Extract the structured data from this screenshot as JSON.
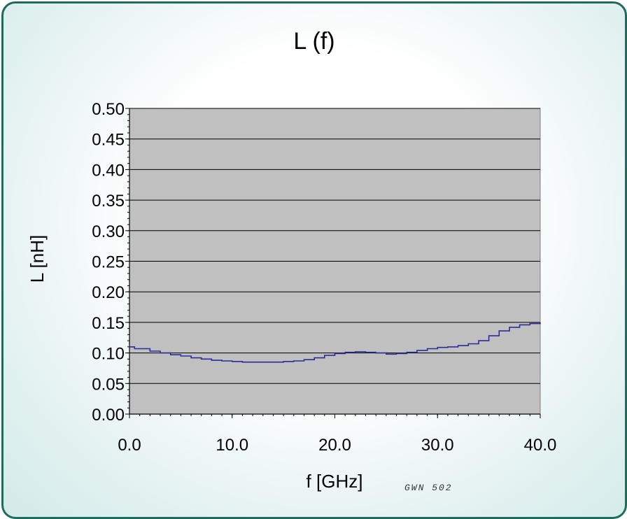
{
  "chart_data": {
    "type": "line",
    "title": "L (f)",
    "xlabel": "f [GHz]",
    "ylabel": "L [nH]",
    "xlim": [
      0,
      40
    ],
    "ylim": [
      0,
      0.5
    ],
    "x_ticks": [
      "0.0",
      "10.0",
      "20.0",
      "30.0",
      "40.0"
    ],
    "y_ticks": [
      "0.00",
      "0.05",
      "0.10",
      "0.15",
      "0.20",
      "0.25",
      "0.30",
      "0.35",
      "0.40",
      "0.45",
      "0.50"
    ],
    "grid": "horizontal",
    "legend": "none",
    "series": [
      {
        "color": "#2b2b9a",
        "x": [
          0,
          0.5,
          1,
          2,
          3,
          4,
          5,
          6,
          7,
          8,
          9,
          10,
          11,
          12,
          13,
          14,
          15,
          16,
          17,
          18,
          19,
          20,
          21,
          22,
          23,
          24,
          25,
          26,
          27,
          28,
          29,
          30,
          31,
          32,
          33,
          34,
          35,
          36,
          37,
          38,
          39,
          40
        ],
        "values": [
          0.11,
          0.107,
          0.107,
          0.103,
          0.1,
          0.097,
          0.095,
          0.092,
          0.09,
          0.088,
          0.087,
          0.086,
          0.085,
          0.085,
          0.085,
          0.085,
          0.086,
          0.087,
          0.089,
          0.092,
          0.096,
          0.099,
          0.101,
          0.102,
          0.101,
          0.1,
          0.098,
          0.099,
          0.101,
          0.104,
          0.107,
          0.109,
          0.11,
          0.112,
          0.115,
          0.12,
          0.128,
          0.136,
          0.142,
          0.146,
          0.148,
          0.15
        ]
      }
    ]
  },
  "watermark": "GWN 502",
  "colors": {
    "frame": "#1f6b5d",
    "plot_background": "#c0c0c0",
    "line": "#2b2b9a"
  }
}
